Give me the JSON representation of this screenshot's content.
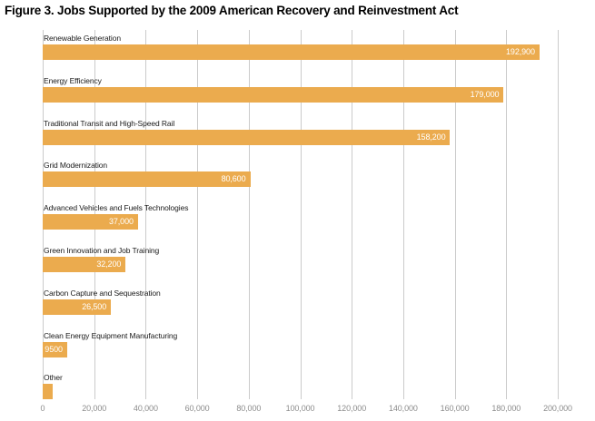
{
  "title": "Figure 3. Jobs Supported by the 2009 American Recovery and Reinvestment Act",
  "colors": {
    "background": "#FFFFFF",
    "bar": "#EBAB4E",
    "gridline": "#CBCBCB",
    "axis_label": "#8C8C8C",
    "category_label": "#1A1A1A",
    "value_label": "#FFFFFF",
    "title": "#000000"
  },
  "chart_data": {
    "type": "bar",
    "orientation": "horizontal",
    "title": "Figure 3. Jobs Supported by the 2009 American Recovery and Reinvestment Act",
    "categories": [
      "Renewable Generation",
      "Energy Efficiency",
      "Traditional Transit and High-Speed Rail",
      "Grid Modernization",
      "Advanced Vehicles and Fuels Technologies",
      "Green Innovation and Job Training",
      "Carbon Capture and Sequestration",
      "Clean Energy Equipment Manufacturing",
      "Other"
    ],
    "values": [
      192900,
      179000,
      158200,
      80600,
      37000,
      32200,
      26500,
      9500,
      3900
    ],
    "value_labels": [
      "192,900",
      "179,000",
      "158,200",
      "80,600",
      "37,000",
      "32,200",
      "26,500",
      "9500",
      ""
    ],
    "xlabel": "",
    "ylabel": "",
    "xlim": [
      0,
      200000
    ],
    "x_ticks": [
      "0",
      "20,000",
      "40,000",
      "60,000",
      "80,000",
      "100,000",
      "120,000",
      "140,000",
      "160,000",
      "180,000",
      "200,000"
    ],
    "x_tick_values": [
      0,
      20000,
      40000,
      60000,
      80000,
      100000,
      120000,
      140000,
      160000,
      180000,
      200000
    ],
    "grid": true,
    "legend": false
  }
}
